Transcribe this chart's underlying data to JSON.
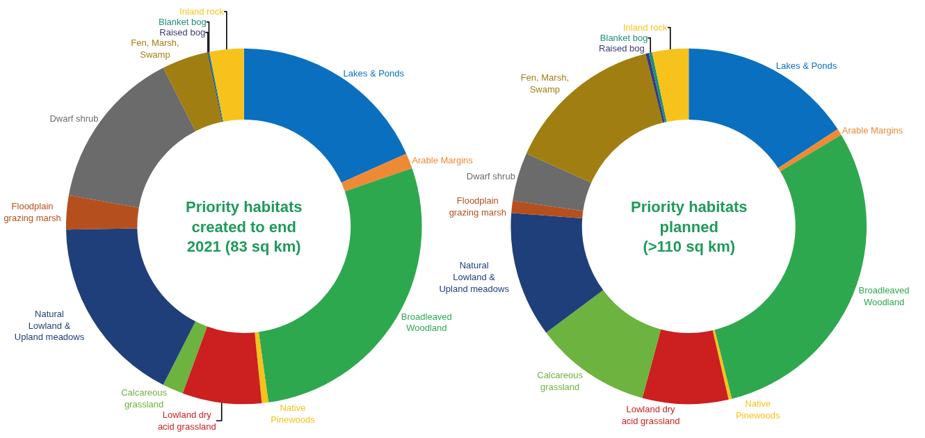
{
  "chart_data": [
    {
      "type": "donut",
      "title": "Priority habitats created to end 2021 (83 sq km)",
      "categories": [
        "Lakes & Ponds",
        "Arable Margins",
        "Broadleaved Woodland",
        "Native Pinewoods",
        "Lowland dry acid grassland",
        "Calcareous grassland",
        "Natural Lowland & Upland meadows",
        "Floodplain grazing marsh",
        "Dwarf shrub",
        "Fen, Marsh, Swamp",
        "Raised bog",
        "Blanket bog",
        "Inland rock"
      ],
      "values": [
        18.3,
        1.4,
        28.1,
        0.6,
        7.2,
        1.9,
        17.2,
        3.1,
        14.7,
        4.2,
        0.1,
        0.1,
        3.1
      ],
      "colors": [
        "#0b6fbf",
        "#ee8a35",
        "#2ea84f",
        "#f5c21b",
        "#cc1f1f",
        "#6db33f",
        "#1f3f7a",
        "#b5501e",
        "#6b6b6b",
        "#a07e12",
        "#3a3a7a",
        "#1f8f7a",
        "#f7c21b"
      ],
      "legend": false
    },
    {
      "type": "donut",
      "title": "Priority habitats planned (>110 sq km)",
      "categories": [
        "Lakes & Ponds",
        "Arable Margins",
        "Broadleaved Woodland",
        "Native Pinewoods",
        "Lowland dry acid grassland",
        "Calcareous grassland",
        "Natural Lowland & Upland meadows",
        "Floodplain grazing marsh",
        "Dwarf shrub",
        "Fen, Marsh, Swamp",
        "Raised bog",
        "Blanket bog",
        "Inland rock"
      ],
      "values": [
        15.8,
        0.6,
        29.7,
        0.3,
        7.8,
        10.6,
        11.4,
        1.1,
        4.4,
        14.4,
        0.3,
        0.3,
        3.3
      ],
      "colors": [
        "#0b6fbf",
        "#ee8a35",
        "#2ea84f",
        "#f5c21b",
        "#cc1f1f",
        "#6db33f",
        "#1f3f7a",
        "#b5501e",
        "#6b6b6b",
        "#a07e12",
        "#3a3a7a",
        "#1f8f7a",
        "#f7c21b"
      ],
      "legend": false
    }
  ]
}
